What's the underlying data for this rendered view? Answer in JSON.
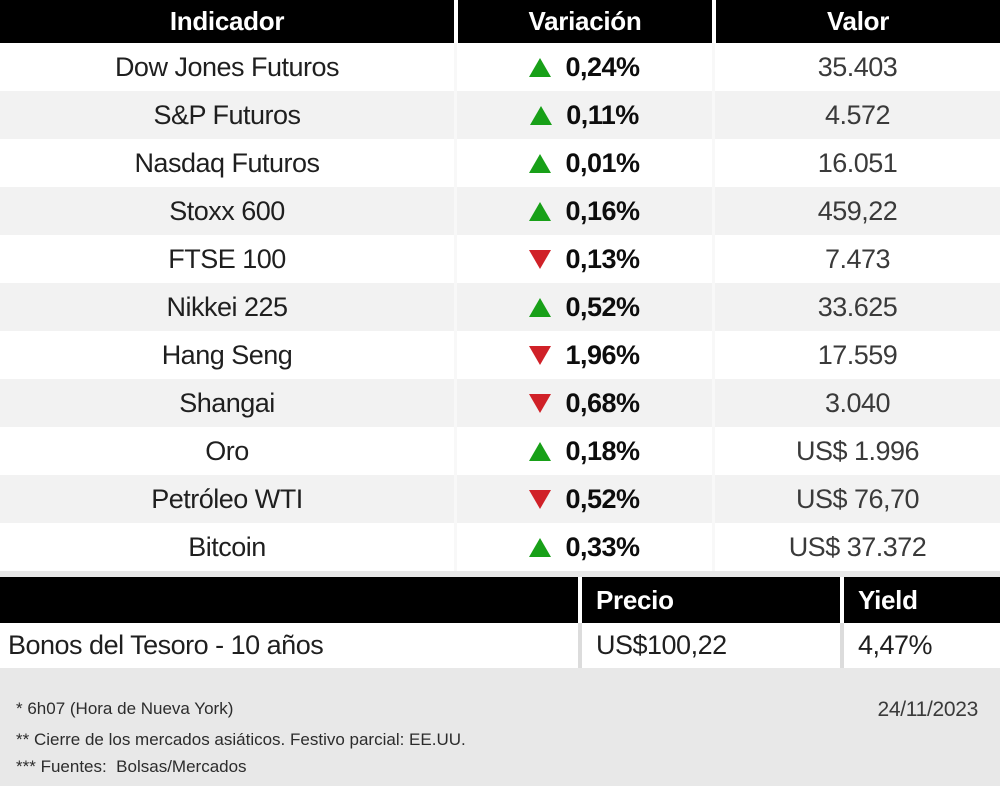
{
  "colors": {
    "header_bg": "#000000",
    "row_alt_bg": "#f2f2f2",
    "footer_bg": "#e8e8e8",
    "up_green": "#18a018",
    "down_red": "#d02128",
    "text_dark": "#1f1f1f",
    "value_text": "#3a3a3a"
  },
  "table1": {
    "headers": [
      "Indicador",
      "Variación",
      "Valor"
    ],
    "rows": [
      {
        "name": "Dow Jones Futuros",
        "direction": "up",
        "change": "0,24%",
        "value": "35.403"
      },
      {
        "name": "S&P Futuros",
        "direction": "up",
        "change": "0,11%",
        "value": "4.572"
      },
      {
        "name": "Nasdaq Futuros",
        "direction": "up",
        "change": "0,01%",
        "value": "16.051"
      },
      {
        "name": "Stoxx 600",
        "direction": "up",
        "change": "0,16%",
        "value": "459,22"
      },
      {
        "name": "FTSE 100",
        "direction": "down",
        "change": "0,13%",
        "value": "7.473"
      },
      {
        "name": "Nikkei 225",
        "direction": "up",
        "change": "0,52%",
        "value": "33.625"
      },
      {
        "name": "Hang Seng",
        "direction": "down",
        "change": "1,96%",
        "value": "17.559"
      },
      {
        "name": "Shangai",
        "direction": "down",
        "change": "0,68%",
        "value": "3.040"
      },
      {
        "name": "Oro",
        "direction": "up",
        "change": "0,18%",
        "value": "US$ 1.996"
      },
      {
        "name": "Petróleo WTI",
        "direction": "down",
        "change": "0,52%",
        "value": "US$ 76,70"
      },
      {
        "name": "Bitcoin",
        "direction": "up",
        "change": "0,33%",
        "value": "US$ 37.372"
      }
    ]
  },
  "table2": {
    "headers": [
      "",
      "Precio",
      "Yield"
    ],
    "row": {
      "name": "Bonos del Tesoro - 10 años",
      "precio": "US$100,22",
      "yield": "4,47%"
    }
  },
  "footer": {
    "notes": [
      "* 6h07 (Hora de Nueva York)",
      "** Cierre de los mercados asiáticos. Festivo parcial: EE.UU.",
      "*** Fuentes:  Bolsas/Mercados"
    ],
    "date": "24/11/2023"
  }
}
